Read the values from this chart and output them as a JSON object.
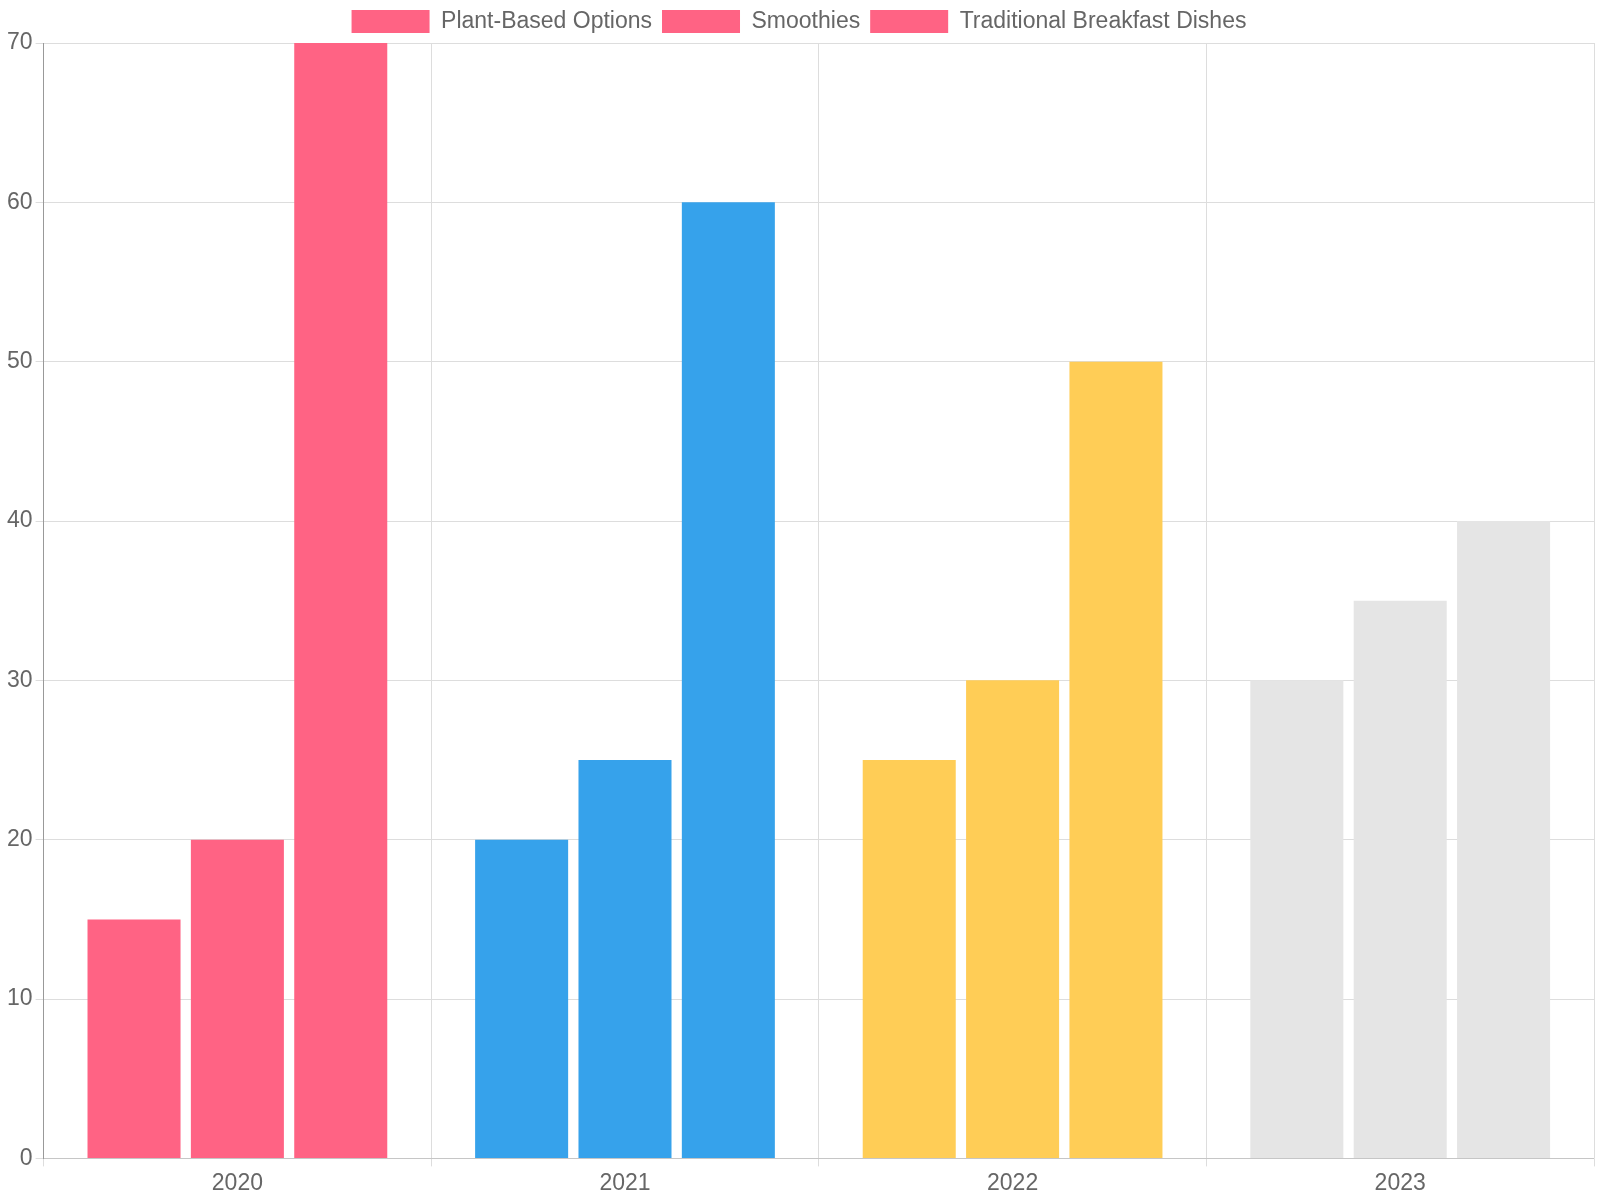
{
  "chart_data": {
    "type": "bar",
    "categories": [
      "2020",
      "2021",
      "2022",
      "2023"
    ],
    "series": [
      {
        "name": "Plant-Based Options",
        "colors": [
          "#ff6384",
          "#36a2eb",
          "#ffcd56",
          "#e5e5e5"
        ],
        "values": [
          15,
          20,
          25,
          30
        ]
      },
      {
        "name": "Smoothies",
        "colors": [
          "#ff6384",
          "#36a2eb",
          "#ffcd56",
          "#e5e5e5"
        ],
        "values": [
          20,
          25,
          30,
          35
        ]
      },
      {
        "name": "Traditional Breakfast Dishes",
        "colors": [
          "#ff6384",
          "#36a2eb",
          "#ffcd56",
          "#e5e5e5"
        ],
        "values": [
          70,
          60,
          50,
          40
        ]
      }
    ],
    "ylim": [
      0,
      70
    ],
    "yticks": [
      0,
      10,
      20,
      30,
      40,
      50,
      60,
      70
    ],
    "grid": true,
    "legend": "top"
  }
}
